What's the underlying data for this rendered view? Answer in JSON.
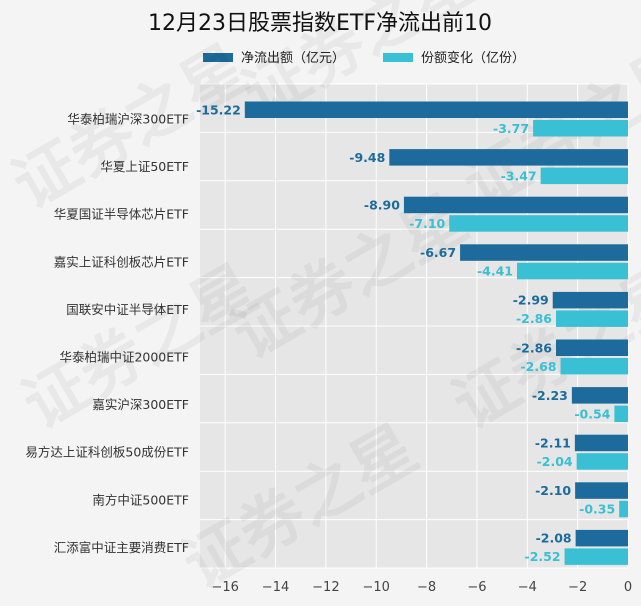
{
  "chart_data": {
    "type": "bar",
    "orientation": "horizontal",
    "title": "12月23日股票指数ETF净流出前10",
    "categories": [
      "华泰柏瑞沪深300ETF",
      "华夏上证50ETF",
      "华夏国证半导体芯片ETF",
      "嘉实上证科创板芯片ETF",
      "国联安中证半导体ETF",
      "华泰柏瑞中证2000ETF",
      "嘉实沪深300ETF",
      "易方达上证科创板50成份ETF",
      "南方中证500ETF",
      "汇添富中证主要消费ETF"
    ],
    "series": [
      {
        "name": "净流出额（亿元）",
        "color": "#1c6b9c",
        "values": [
          -15.22,
          -9.48,
          -8.9,
          -6.67,
          -2.99,
          -2.86,
          -2.23,
          -2.11,
          -2.1,
          -2.08
        ],
        "labels": [
          "-15.22",
          "-9.48",
          "-8.90",
          "-6.67",
          "-2.99",
          "-2.86",
          "-2.23",
          "-2.11",
          "-2.10",
          "-2.08"
        ]
      },
      {
        "name": "份额变化（亿份）",
        "color": "#39c0d4",
        "values": [
          -3.77,
          -3.47,
          -7.1,
          -4.41,
          -2.86,
          -2.68,
          -0.54,
          -2.04,
          -0.35,
          -2.52
        ],
        "labels": [
          "-3.77",
          "-3.47",
          "-7.10",
          "-4.41",
          "-2.86",
          "-2.68",
          "-0.54",
          "-2.04",
          "-0.35",
          "-2.52"
        ]
      }
    ],
    "xlim": [
      -17,
      0
    ],
    "xticks": [
      -16,
      -14,
      -12,
      -10,
      -8,
      -6,
      -4,
      -2,
      0
    ],
    "xtick_labels": [
      "−16",
      "−14",
      "−12",
      "−10",
      "−8",
      "−6",
      "−4",
      "−2",
      "0"
    ],
    "grid": true,
    "legend_position": "top",
    "plot_background": "#e6e6e6",
    "watermark": "证券之星"
  }
}
